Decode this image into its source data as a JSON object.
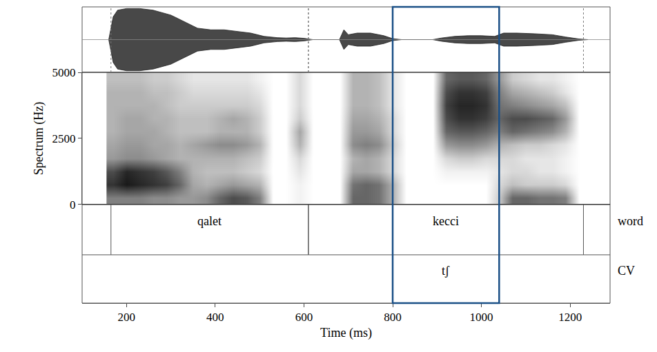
{
  "chart_data": {
    "type": "spectrogram",
    "xlabel": "Time (ms)",
    "ylabel": "Spectrum (Hz)",
    "xlim": [
      100,
      1290
    ],
    "xticks": [
      200,
      400,
      600,
      800,
      1000,
      1200
    ],
    "ylim": [
      0,
      5000
    ],
    "yticks": [
      0,
      2500,
      5000
    ],
    "waveform": {
      "ylim": [
        -1,
        1
      ],
      "x": [
        160,
        170,
        180,
        200,
        230,
        260,
        300,
        330,
        360,
        390,
        420,
        450,
        480,
        510,
        540,
        560,
        580,
        600,
        620,
        680,
        690,
        700,
        720,
        750,
        780,
        800,
        820,
        890,
        910,
        940,
        970,
        1000,
        1030,
        1050,
        1080,
        1120,
        1160,
        1190,
        1220,
        1240
      ],
      "envelope": [
        0,
        0.7,
        0.9,
        0.95,
        0.95,
        0.9,
        0.75,
        0.55,
        0.35,
        0.3,
        0.3,
        0.25,
        0.2,
        0.1,
        0.06,
        0.05,
        0.06,
        0.04,
        0,
        0,
        0.3,
        0.15,
        0.2,
        0.2,
        0.12,
        0.03,
        0,
        0,
        0.05,
        0.1,
        0.12,
        0.12,
        0.1,
        0.2,
        0.2,
        0.18,
        0.15,
        0.08,
        0.02,
        0
      ]
    },
    "spectrogram": {
      "zlim": [
        0,
        1
      ],
      "x": [
        170,
        200,
        230,
        260,
        290,
        320,
        350,
        380,
        410,
        440,
        470,
        500,
        530,
        560,
        590,
        620,
        650,
        680,
        710,
        740,
        770,
        800,
        830,
        860,
        890,
        920,
        950,
        980,
        1010,
        1040,
        1070,
        1100,
        1130,
        1160,
        1190,
        1220
      ],
      "y": [
        250,
        750,
        1250,
        1750,
        2250,
        2750,
        3250,
        3750,
        4250,
        4750
      ],
      "cells": [
        [
          0.5,
          0.8,
          0.7,
          0.4,
          0.35,
          0.3,
          0.3,
          0.3,
          0.3,
          0.25
        ],
        [
          0.5,
          0.9,
          0.85,
          0.45,
          0.4,
          0.35,
          0.35,
          0.3,
          0.3,
          0.25
        ],
        [
          0.5,
          0.85,
          0.8,
          0.45,
          0.4,
          0.35,
          0.35,
          0.3,
          0.3,
          0.25
        ],
        [
          0.45,
          0.8,
          0.75,
          0.4,
          0.35,
          0.35,
          0.3,
          0.3,
          0.25,
          0.2
        ],
        [
          0.45,
          0.75,
          0.65,
          0.35,
          0.35,
          0.3,
          0.3,
          0.25,
          0.25,
          0.2
        ],
        [
          0.4,
          0.6,
          0.5,
          0.3,
          0.3,
          0.25,
          0.25,
          0.2,
          0.2,
          0.15
        ],
        [
          0.4,
          0.35,
          0.3,
          0.3,
          0.35,
          0.25,
          0.25,
          0.2,
          0.15,
          0.1
        ],
        [
          0.45,
          0.3,
          0.25,
          0.3,
          0.4,
          0.25,
          0.25,
          0.2,
          0.15,
          0.1
        ],
        [
          0.6,
          0.35,
          0.25,
          0.3,
          0.45,
          0.3,
          0.3,
          0.2,
          0.15,
          0.1
        ],
        [
          0.7,
          0.4,
          0.25,
          0.3,
          0.45,
          0.3,
          0.35,
          0.2,
          0.15,
          0.1
        ],
        [
          0.65,
          0.35,
          0.2,
          0.25,
          0.4,
          0.3,
          0.3,
          0.2,
          0.15,
          0.1
        ],
        [
          0.5,
          0.3,
          0.15,
          0.2,
          0.3,
          0.2,
          0.2,
          0.15,
          0.1,
          0.05
        ],
        [
          0,
          0,
          0,
          0,
          0,
          0,
          0,
          0,
          0,
          0
        ],
        [
          0,
          0,
          0,
          0,
          0,
          0,
          0,
          0,
          0,
          0
        ],
        [
          0.05,
          0.05,
          0.1,
          0.15,
          0.3,
          0.35,
          0.2,
          0.15,
          0.15,
          0.15
        ],
        [
          0,
          0,
          0,
          0,
          0,
          0,
          0,
          0,
          0,
          0
        ],
        [
          0,
          0,
          0,
          0,
          0,
          0,
          0,
          0,
          0,
          0
        ],
        [
          0,
          0,
          0,
          0,
          0,
          0,
          0,
          0,
          0,
          0
        ],
        [
          0.6,
          0.55,
          0.35,
          0.3,
          0.45,
          0.4,
          0.35,
          0.3,
          0.3,
          0.3
        ],
        [
          0.6,
          0.6,
          0.35,
          0.35,
          0.5,
          0.4,
          0.35,
          0.3,
          0.3,
          0.3
        ],
        [
          0.55,
          0.55,
          0.3,
          0.3,
          0.45,
          0.35,
          0.3,
          0.25,
          0.25,
          0.25
        ],
        [
          0.3,
          0.3,
          0.15,
          0.15,
          0.2,
          0.15,
          0.15,
          0.1,
          0.1,
          0.1
        ],
        [
          0,
          0,
          0,
          0,
          0,
          0,
          0,
          0,
          0,
          0
        ],
        [
          0,
          0,
          0,
          0,
          0,
          0,
          0,
          0,
          0,
          0
        ],
        [
          0,
          0,
          0,
          0,
          0,
          0,
          0,
          0,
          0,
          0
        ],
        [
          0,
          0,
          0.05,
          0.15,
          0.4,
          0.6,
          0.7,
          0.75,
          0.7,
          0.6
        ],
        [
          0,
          0,
          0.05,
          0.2,
          0.45,
          0.65,
          0.8,
          0.85,
          0.8,
          0.65
        ],
        [
          0,
          0,
          0.05,
          0.2,
          0.45,
          0.65,
          0.8,
          0.85,
          0.8,
          0.65
        ],
        [
          0,
          0,
          0.05,
          0.15,
          0.4,
          0.6,
          0.75,
          0.8,
          0.75,
          0.6
        ],
        [
          0.2,
          0.15,
          0.1,
          0.15,
          0.3,
          0.5,
          0.6,
          0.55,
          0.5,
          0.4
        ],
        [
          0.6,
          0.25,
          0.15,
          0.15,
          0.25,
          0.6,
          0.7,
          0.5,
          0.35,
          0.2
        ],
        [
          0.6,
          0.2,
          0.15,
          0.1,
          0.2,
          0.55,
          0.7,
          0.45,
          0.3,
          0.15
        ],
        [
          0.55,
          0.2,
          0.1,
          0.1,
          0.2,
          0.5,
          0.65,
          0.4,
          0.25,
          0.1
        ],
        [
          0.55,
          0.2,
          0.1,
          0.1,
          0.15,
          0.45,
          0.6,
          0.35,
          0.2,
          0.1
        ],
        [
          0.5,
          0.15,
          0.05,
          0.05,
          0.1,
          0.3,
          0.4,
          0.25,
          0.1,
          0.05
        ],
        [
          0,
          0,
          0,
          0,
          0,
          0,
          0,
          0,
          0,
          0
        ]
      ]
    },
    "tiers": [
      {
        "name": "word",
        "intervals": [
          {
            "start": 165,
            "end": 610,
            "label": "qalet"
          },
          {
            "start": 610,
            "end": 1230,
            "label": "kecci"
          }
        ]
      },
      {
        "name": "CV",
        "intervals": [
          {
            "start": 800,
            "end": 1040,
            "label": "tʃ"
          }
        ]
      }
    ],
    "highlight": {
      "start": 800,
      "end": 1040,
      "color": "#1a4f86"
    }
  }
}
